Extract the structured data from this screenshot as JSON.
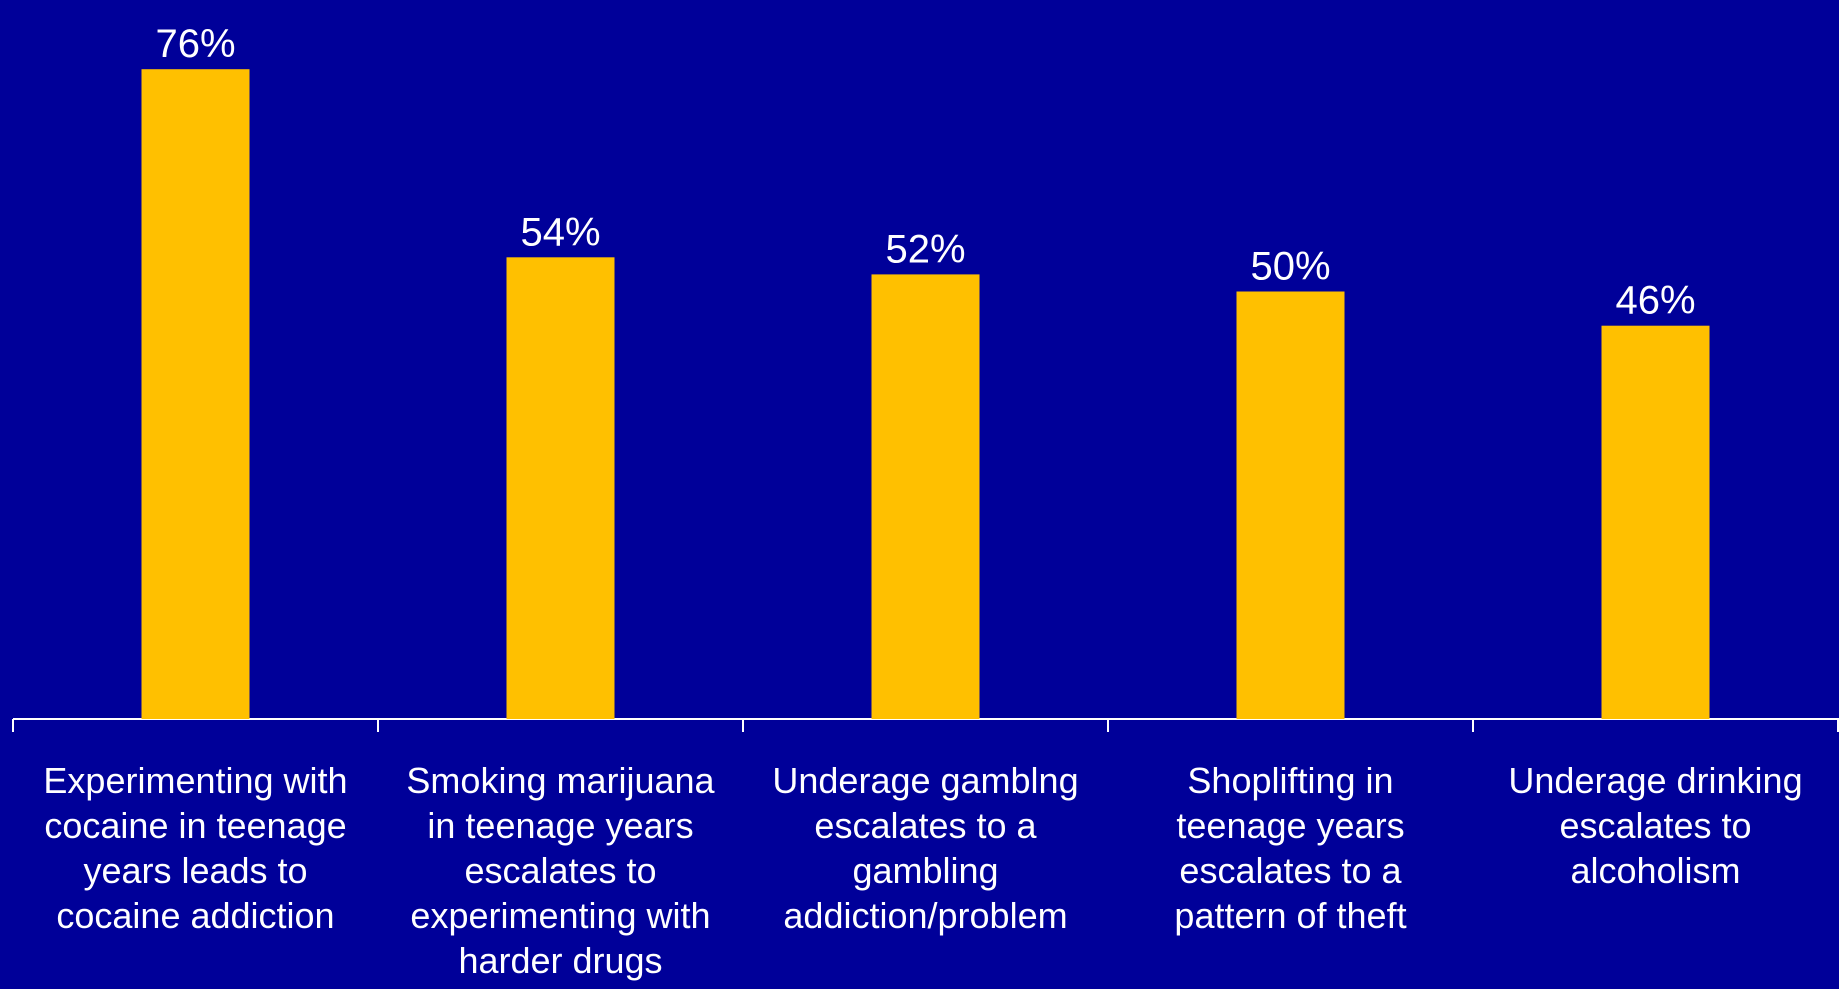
{
  "colors": {
    "background": "#000099",
    "bar": "#FFC000",
    "axis": "#FFFFFF",
    "text": "#FFFFFF"
  },
  "chart_data": {
    "type": "bar",
    "categories": [
      "Experimenting with cocaine in teenage years leads to cocaine addiction",
      "Smoking marijuana in teenage years escalates to experimenting with harder drugs",
      "Underage gamblng escalates to a gambling addiction/problem",
      "Shoplifting in teenage years escalates to a pattern of theft",
      "Underage drinking escalates to alcoholism"
    ],
    "values": [
      76,
      54,
      52,
      50,
      46
    ],
    "data_labels": [
      "76%",
      "54%",
      "52%",
      "50%",
      "46%"
    ],
    "ylim": [
      0,
      100
    ],
    "grid": false,
    "legend": "none"
  }
}
